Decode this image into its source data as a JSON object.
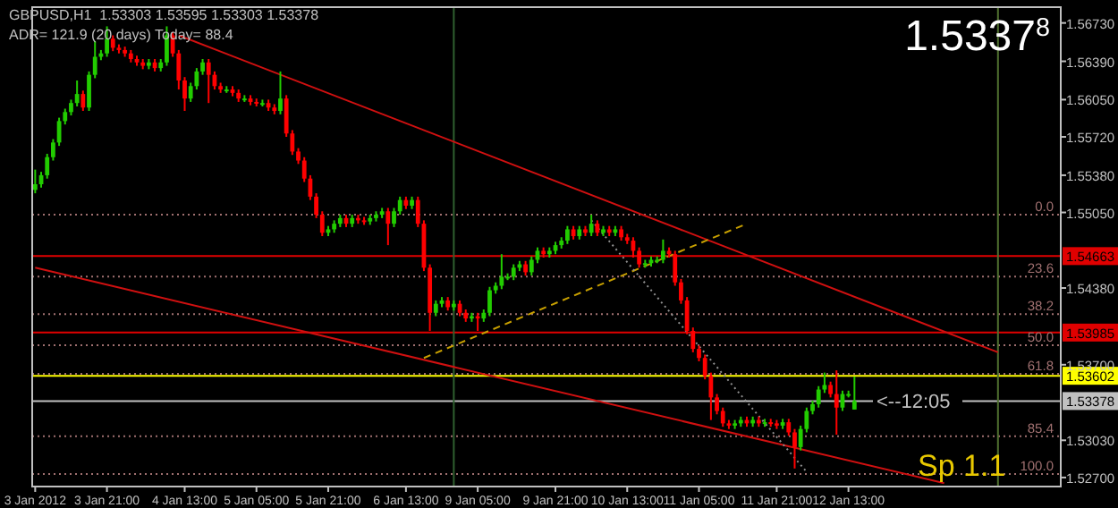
{
  "chart_data": {
    "type": "candlestick",
    "title": "GBPUSD,H1  1.53303 1.53595 1.53303 1.53378",
    "subtitle": "ADR= 121.9 (20 days) Today= 88.4",
    "annotations": [
      "1.5337$^{8}$",
      "<--12:05",
      "Sp 1.1",
      {
        "text": "0.0",
        "y": 1.5503
      },
      {
        "text": "23.6",
        "y": 1.54481
      },
      {
        "text": "38.2",
        "y": 1.54148
      },
      {
        "text": "50.0",
        "y": 1.53873
      },
      {
        "text": "61.8",
        "y": 1.5362
      },
      {
        "text": "85.4",
        "y": 1.53066
      },
      {
        "text": "100.0",
        "y": 1.52731
      }
    ],
    "categories": [
      "3 Jan 2012",
      null,
      null,
      null,
      null,
      null,
      null,
      null,
      null,
      null,
      null,
      null,
      "3 Jan 21:00",
      null,
      null,
      null,
      null,
      null,
      null,
      null,
      null,
      null,
      null,
      null,
      null,
      "4 Jan 13:00",
      null,
      null,
      null,
      null,
      null,
      null,
      null,
      null,
      null,
      null,
      null,
      "5 Jan 05:00",
      null,
      null,
      null,
      null,
      null,
      null,
      null,
      null,
      null,
      null,
      null,
      "5 Jan 21:00",
      null,
      null,
      null,
      null,
      null,
      null,
      null,
      null,
      null,
      null,
      null,
      null,
      "6 Jan 13:00",
      null,
      null,
      null,
      null,
      null,
      null,
      null,
      null,
      null,
      null,
      null,
      "9 Jan 05:00",
      null,
      null,
      null,
      null,
      null,
      null,
      null,
      null,
      null,
      null,
      null,
      null,
      "9 Jan 21:00",
      null,
      null,
      null,
      null,
      null,
      null,
      null,
      null,
      null,
      null,
      null,
      "10 Jan 13:00",
      null,
      null,
      null,
      null,
      null,
      null,
      null,
      null,
      null,
      null,
      null,
      "11 Jan 05:00",
      null,
      null,
      null,
      null,
      null,
      null,
      null,
      null,
      null,
      null,
      null,
      null,
      "11 Jan 21:00",
      null,
      null,
      null,
      null,
      null,
      null,
      null,
      null,
      null,
      null,
      null,
      "12 Jan 13:00",
      null,
      null,
      null,
      null,
      null,
      null,
      null,
      null,
      null,
      null,
      null,
      null,
      null,
      null,
      null,
      null,
      null,
      null,
      null,
      null,
      null,
      null,
      null,
      null,
      null,
      null,
      null,
      null,
      null,
      null,
      null,
      null,
      null,
      null,
      null
    ],
    "ylim": [
      1.5262,
      1.5687
    ],
    "yticks": [
      {
        "value": 1.527,
        "label": "1.52700"
      },
      {
        "value": 1.5303,
        "label": "1.53030"
      },
      {
        "value": 1.537,
        "label": "1.53700"
      },
      {
        "value": 1.5438,
        "label": "1.54380"
      },
      {
        "value": 1.5505,
        "label": "1.55050"
      },
      {
        "value": 1.5538,
        "label": "1.55380"
      },
      {
        "value": 1.5572,
        "label": "1.55720"
      },
      {
        "value": 1.5605,
        "label": "1.56050"
      },
      {
        "value": 1.5639,
        "label": "1.56390"
      },
      {
        "value": 1.5673,
        "label": "1.56730"
      }
    ],
    "ref_lines": [
      {
        "axis": "y",
        "value": 1.5503,
        "color": "#a07070",
        "line_style": "dotted"
      },
      {
        "axis": "y",
        "value": 1.54481,
        "color": "#a07070",
        "line_style": "dotted"
      },
      {
        "axis": "y",
        "value": 1.54148,
        "color": "#a07070",
        "line_style": "dotted"
      },
      {
        "axis": "y",
        "value": 1.53873,
        "color": "#a07070",
        "line_style": "dotted"
      },
      {
        "axis": "y",
        "value": 1.5362,
        "color": "#a07070",
        "line_style": "dotted"
      },
      {
        "axis": "y",
        "value": 1.53066,
        "color": "#a07070",
        "line_style": "dotted"
      },
      {
        "axis": "y",
        "value": 1.52731,
        "color": "#a07070",
        "line_style": "dotted"
      },
      {
        "axis": "y",
        "value": 1.54663,
        "label": "1.54663",
        "color": "#e00000",
        "line_style": "solid"
      },
      {
        "axis": "y",
        "value": 1.53985,
        "label": "1.53985",
        "color": "#e00000",
        "line_style": "solid"
      },
      {
        "axis": "y",
        "value": 1.53602,
        "label": "1.53602",
        "color": "#ffff00",
        "line_style": "solid"
      },
      {
        "axis": "y",
        "value": 1.53378,
        "label": "1.53378",
        "color": "#c0c0c0",
        "line_style": "solid"
      }
    ],
    "series": [
      {
        "colors": [
          "#22cc00",
          "#22cc00",
          "#22cc00",
          "#22cc00",
          "#22cc00",
          "#22cc00",
          "#22cc00",
          "#22cc00",
          "#ff0000",
          "#22cc00",
          "#22cc00",
          "#22cc00",
          "#22cc00",
          "#ff0000",
          "#ff0000",
          "#ff0000",
          "#ff0000",
          "#ff0000",
          "#ff0000",
          "#22cc00",
          "#ff0000",
          "#22cc00",
          "#22cc00",
          "#ff0000",
          "#ff0000",
          "#ff0000",
          "#22cc00",
          "#22cc00",
          "#22cc00",
          "#ff0000",
          "#ff0000",
          "#ff0000",
          "#22cc00",
          "#ff0000",
          "#ff0000",
          "#22cc00",
          "#ff0000",
          "#ff0000",
          "#22cc00",
          "#ff0000",
          "#ff0000",
          "#22cc00",
          "#ff0000",
          "#ff0000",
          "#ff0000",
          "#ff0000",
          "#ff0000",
          "#ff0000",
          "#ff0000",
          "#22cc00",
          "#22cc00",
          "#22cc00",
          "#ff0000",
          "#22cc00",
          "#ff0000",
          "#ff0000",
          "#22cc00",
          "#22cc00",
          "#22cc00",
          "#ff0000",
          "#22cc00",
          "#22cc00",
          "#ff0000",
          "#22cc00",
          "#ff0000",
          "#ff0000",
          "#ff0000",
          "#22cc00",
          "#22cc00",
          "#ff0000",
          "#22cc00",
          "#ff0000",
          "#ff0000",
          "#22cc00",
          "#ff0000",
          "#22cc00",
          "#22cc00",
          "#22cc00",
          "#22cc00",
          "#22cc00",
          "#22cc00",
          "#22cc00",
          "#ff0000",
          "#22cc00",
          "#22cc00",
          "#ff0000",
          "#22cc00",
          "#22cc00",
          "#22cc00",
          "#22cc00",
          "#ff0000",
          "#22cc00",
          "#ff0000",
          "#22cc00",
          "#ff0000",
          "#22cc00",
          "#ff0000",
          "#22cc00",
          "#ff0000",
          "#ff0000",
          "#ff0000",
          "#ff0000",
          "#22cc00",
          "#22cc00",
          "#22cc00",
          "#22cc00",
          "#ff0000",
          "#ff0000",
          "#ff0000",
          "#ff0000",
          "#ff0000",
          "#ff0000",
          "#ff0000",
          "#ff0000",
          "#ff0000",
          "#ff0000",
          "#ff0000",
          "#22cc00",
          "#22cc00",
          "#ff0000",
          "#22cc00",
          "#ff0000",
          "#22cc00",
          "#ff0000",
          "#ff0000",
          "#22cc00",
          "#ff0000",
          "#ff0000",
          "#22cc00",
          "#22cc00",
          "#22cc00",
          "#22cc00",
          "#22cc00",
          "#ff0000",
          "#ff0000",
          "#22cc00",
          "#22cc00",
          "#22cc00",
          null,
          null,
          null,
          null,
          null,
          null,
          null,
          null,
          null,
          null,
          null,
          null,
          null,
          null,
          null,
          null,
          null,
          null,
          null,
          null,
          null,
          null,
          null,
          null,
          null,
          null,
          null,
          null,
          null,
          null,
          null,
          null,
          null,
          null
        ],
        "ohlc": [
          [
            1.5525,
            1.5543,
            1.5522,
            1.553
          ],
          [
            1.553,
            1.5541,
            1.5527,
            1.5538
          ],
          [
            1.5538,
            1.5557,
            1.5535,
            1.5554
          ],
          [
            1.5554,
            1.557,
            1.5551,
            1.5567
          ],
          [
            1.5567,
            1.5589,
            1.5564,
            1.5586
          ],
          [
            1.5586,
            1.5597,
            1.5583,
            1.5594
          ],
          [
            1.5594,
            1.5605,
            1.5591,
            1.5602
          ],
          [
            1.5602,
            1.5622,
            1.5599,
            1.561
          ],
          [
            1.561,
            1.5613,
            1.5595,
            1.5598
          ],
          [
            1.5598,
            1.563,
            1.5595,
            1.5627
          ],
          [
            1.5627,
            1.5657,
            1.5624,
            1.5643
          ],
          [
            1.5643,
            1.5649,
            1.564,
            1.5646
          ],
          [
            1.5646,
            1.567,
            1.5643,
            1.5659
          ],
          [
            1.5659,
            1.5662,
            1.5648,
            1.5651
          ],
          [
            1.5651,
            1.5654,
            1.5646,
            1.5649
          ],
          [
            1.5649,
            1.5652,
            1.5643,
            1.5646
          ],
          [
            1.5646,
            1.5649,
            1.5638,
            1.5641
          ],
          [
            1.5641,
            1.5644,
            1.5635,
            1.5638
          ],
          [
            1.5638,
            1.5641,
            1.5632,
            1.5635
          ],
          [
            1.5635,
            1.5641,
            1.5632,
            1.5638
          ],
          [
            1.5638,
            1.5641,
            1.563,
            1.5633
          ],
          [
            1.5633,
            1.5641,
            1.563,
            1.5638
          ],
          [
            1.5638,
            1.567,
            1.5635,
            1.5662
          ],
          [
            1.5662,
            1.5665,
            1.5643,
            1.5646
          ],
          [
            1.5646,
            1.5649,
            1.5614,
            1.5622
          ],
          [
            1.5622,
            1.5625,
            1.5595,
            1.5606
          ],
          [
            1.5606,
            1.562,
            1.5603,
            1.5617
          ],
          [
            1.5617,
            1.5633,
            1.5614,
            1.563
          ],
          [
            1.563,
            1.5641,
            1.5627,
            1.5638
          ],
          [
            1.5638,
            1.5641,
            1.5602,
            1.5627
          ],
          [
            1.5627,
            1.563,
            1.5614,
            1.5617
          ],
          [
            1.5617,
            1.562,
            1.5611,
            1.5614
          ],
          [
            1.5614,
            1.5617,
            1.5611,
            1.5614
          ],
          [
            1.5614,
            1.5617,
            1.5608,
            1.5611
          ],
          [
            1.5611,
            1.5614,
            1.5603,
            1.5606
          ],
          [
            1.5606,
            1.5609,
            1.5603,
            1.5606
          ],
          [
            1.5606,
            1.5609,
            1.56,
            1.5603
          ],
          [
            1.5603,
            1.5606,
            1.5599,
            1.5602
          ],
          [
            1.5602,
            1.5605,
            1.5599,
            1.5602
          ],
          [
            1.5602,
            1.5605,
            1.5595,
            1.5598
          ],
          [
            1.5598,
            1.5601,
            1.5592,
            1.5595
          ],
          [
            1.5595,
            1.563,
            1.5592,
            1.5606
          ],
          [
            1.5606,
            1.5609,
            1.5572,
            1.5575
          ],
          [
            1.5575,
            1.5578,
            1.5556,
            1.5559
          ],
          [
            1.5559,
            1.5562,
            1.5548,
            1.5551
          ],
          [
            1.5551,
            1.5554,
            1.5532,
            1.5535
          ],
          [
            1.5535,
            1.5538,
            1.5516,
            1.5519
          ],
          [
            1.5519,
            1.5522,
            1.55,
            1.5503
          ],
          [
            1.5503,
            1.5506,
            1.5484,
            1.5487
          ],
          [
            1.5487,
            1.5493,
            1.5484,
            1.549
          ],
          [
            1.549,
            1.5498,
            1.5487,
            1.5495
          ],
          [
            1.5495,
            1.5503,
            1.5492,
            1.55
          ],
          [
            1.55,
            1.5503,
            1.5492,
            1.5495
          ],
          [
            1.5495,
            1.5503,
            1.5492,
            1.55
          ],
          [
            1.55,
            1.5503,
            1.5495,
            1.5498
          ],
          [
            1.5498,
            1.5501,
            1.5494,
            1.5497
          ],
          [
            1.5497,
            1.5503,
            1.5494,
            1.55
          ],
          [
            1.55,
            1.5506,
            1.5497,
            1.5503
          ],
          [
            1.5503,
            1.5509,
            1.55,
            1.5506
          ],
          [
            1.5506,
            1.5509,
            1.5476,
            1.5495
          ],
          [
            1.5495,
            1.5509,
            1.5492,
            1.5506
          ],
          [
            1.5506,
            1.5519,
            1.5503,
            1.5516
          ],
          [
            1.5516,
            1.5519,
            1.5508,
            1.5511
          ],
          [
            1.5511,
            1.5519,
            1.5508,
            1.5516
          ],
          [
            1.5516,
            1.5519,
            1.5492,
            1.5495
          ],
          [
            1.5495,
            1.5498,
            1.5453,
            1.5456
          ],
          [
            1.5456,
            1.5459,
            1.54,
            1.5416
          ],
          [
            1.5416,
            1.5427,
            1.5413,
            1.5424
          ],
          [
            1.5424,
            1.543,
            1.5421,
            1.5427
          ],
          [
            1.5427,
            1.543,
            1.5418,
            1.5421
          ],
          [
            1.5421,
            1.5427,
            1.5418,
            1.5424
          ],
          [
            1.5424,
            1.5427,
            1.5413,
            1.5416
          ],
          [
            1.5416,
            1.5419,
            1.5408,
            1.5411
          ],
          [
            1.5411,
            1.5416,
            1.5408,
            1.5413
          ],
          [
            1.5413,
            1.5416,
            1.54,
            1.5411
          ],
          [
            1.5411,
            1.5419,
            1.5408,
            1.5416
          ],
          [
            1.5416,
            1.5439,
            1.5413,
            1.5436
          ],
          [
            1.5436,
            1.5443,
            1.5433,
            1.544
          ],
          [
            1.544,
            1.5468,
            1.5437,
            1.5448
          ],
          [
            1.5448,
            1.5451,
            1.5445,
            1.5448
          ],
          [
            1.5448,
            1.5459,
            1.5445,
            1.5456
          ],
          [
            1.5456,
            1.5462,
            1.5453,
            1.5459
          ],
          [
            1.5459,
            1.5462,
            1.5449,
            1.5452
          ],
          [
            1.5452,
            1.5466,
            1.5449,
            1.5463
          ],
          [
            1.5463,
            1.5474,
            1.546,
            1.5471
          ],
          [
            1.5471,
            1.5474,
            1.5465,
            1.5468
          ],
          [
            1.5468,
            1.5474,
            1.5465,
            1.5471
          ],
          [
            1.5471,
            1.5479,
            1.5468,
            1.5476
          ],
          [
            1.5476,
            1.5483,
            1.5473,
            1.548
          ],
          [
            1.548,
            1.5493,
            1.5477,
            1.549
          ],
          [
            1.549,
            1.5493,
            1.5481,
            1.5484
          ],
          [
            1.5484,
            1.5493,
            1.5481,
            1.549
          ],
          [
            1.549,
            1.5493,
            1.5484,
            1.5487
          ],
          [
            1.5487,
            1.5503,
            1.5484,
            1.5495
          ],
          [
            1.5495,
            1.5498,
            1.5484,
            1.5487
          ],
          [
            1.5487,
            1.5493,
            1.5484,
            1.549
          ],
          [
            1.549,
            1.5493,
            1.5484,
            1.5487
          ],
          [
            1.5487,
            1.5493,
            1.5484,
            1.549
          ],
          [
            1.549,
            1.5493,
            1.548,
            1.5483
          ],
          [
            1.5483,
            1.5486,
            1.5477,
            1.548
          ],
          [
            1.548,
            1.5483,
            1.5465,
            1.5471
          ],
          [
            1.5471,
            1.5474,
            1.5456,
            1.5459
          ],
          [
            1.5459,
            1.5463,
            1.5456,
            1.546
          ],
          [
            1.546,
            1.5466,
            1.5457,
            1.5463
          ],
          [
            1.5463,
            1.5466,
            1.546,
            1.5463
          ],
          [
            1.5463,
            1.5481,
            1.546,
            1.5471
          ],
          [
            1.5471,
            1.5474,
            1.5465,
            1.5468
          ],
          [
            1.5468,
            1.5471,
            1.544,
            1.5443
          ],
          [
            1.5443,
            1.5446,
            1.5424,
            1.5427
          ],
          [
            1.5427,
            1.543,
            1.5397,
            1.54
          ],
          [
            1.54,
            1.5403,
            1.5381,
            1.5384
          ],
          [
            1.5384,
            1.5387,
            1.5373,
            1.5376
          ],
          [
            1.5376,
            1.5379,
            1.5357,
            1.536
          ],
          [
            1.536,
            1.5363,
            1.5321,
            1.5341
          ],
          [
            1.5341,
            1.5344,
            1.5326,
            1.5329
          ],
          [
            1.5329,
            1.5332,
            1.5315,
            1.5318
          ],
          [
            1.5318,
            1.5321,
            1.5313,
            1.5316
          ],
          [
            1.5316,
            1.5321,
            1.5313,
            1.5318
          ],
          [
            1.5318,
            1.5324,
            1.5315,
            1.5321
          ],
          [
            1.5321,
            1.5324,
            1.5315,
            1.5318
          ],
          [
            1.5318,
            1.5324,
            1.5315,
            1.5321
          ],
          [
            1.5321,
            1.5324,
            1.5315,
            1.5318
          ],
          [
            1.5318,
            1.5322,
            1.5315,
            1.5319
          ],
          [
            1.5319,
            1.5322,
            1.5315,
            1.5318
          ],
          [
            1.5318,
            1.5321,
            1.5313,
            1.5316
          ],
          [
            1.5316,
            1.5322,
            1.5313,
            1.5319
          ],
          [
            1.5319,
            1.5322,
            1.5307,
            1.531
          ],
          [
            1.531,
            1.5313,
            1.5278,
            1.5297
          ],
          [
            1.5297,
            1.5316,
            1.5294,
            1.5313
          ],
          [
            1.5313,
            1.5332,
            1.531,
            1.5329
          ],
          [
            1.5329,
            1.5338,
            1.5326,
            1.5335
          ],
          [
            1.5335,
            1.5351,
            1.5332,
            1.5348
          ],
          [
            1.5348,
            1.5363,
            1.5345,
            1.5352
          ],
          [
            1.5352,
            1.5355,
            1.5341,
            1.5344
          ],
          [
            1.5344,
            1.5365,
            1.5308,
            1.5332
          ],
          [
            1.5332,
            1.5347,
            1.5329,
            1.5344
          ],
          [
            1.5344,
            1.5347,
            1.5341,
            1.5344
          ],
          [
            1.53303,
            1.53595,
            1.53303,
            1.53378
          ],
          null,
          null,
          null,
          null,
          null,
          null,
          null,
          null,
          null,
          null,
          null,
          null,
          null,
          null,
          null,
          null,
          null,
          null,
          null,
          null,
          null,
          null,
          null,
          null,
          null,
          null,
          null,
          null,
          null,
          null,
          null,
          null,
          null,
          null
        ]
      },
      {
        "type": "line",
        "color": "#d01010",
        "line_style": "solid",
        "values": [
          null,
          null,
          null,
          null,
          null,
          null,
          null,
          null,
          null,
          null,
          null,
          null,
          null,
          null,
          null,
          null,
          null,
          null,
          null,
          null,
          null,
          null,
          null,
          null,
          1.5662,
          null,
          null,
          null,
          null,
          null,
          null,
          null,
          null,
          null,
          null,
          null,
          null,
          null,
          null,
          null,
          null,
          null,
          null,
          null,
          null,
          null,
          null,
          null,
          null,
          null,
          null,
          null,
          null,
          null,
          null,
          null,
          null,
          null,
          null,
          null,
          null,
          null,
          null,
          null,
          null,
          null,
          null,
          null,
          null,
          null,
          null,
          null,
          null,
          null,
          null,
          null,
          null,
          null,
          null,
          null,
          null,
          null,
          null,
          null,
          null,
          null,
          null,
          null,
          null,
          null,
          null,
          null,
          null,
          null,
          null,
          null,
          null,
          null,
          null,
          null,
          null,
          null,
          null,
          null,
          null,
          null,
          null,
          null,
          null,
          null,
          null,
          null,
          null,
          null,
          null,
          null,
          null,
          null,
          null,
          null,
          null,
          null,
          null,
          null,
          null,
          null,
          null,
          null,
          null,
          null,
          null,
          null,
          null,
          null,
          null,
          null,
          null,
          null,
          null,
          null,
          null,
          null,
          null,
          null,
          null,
          null,
          null,
          null,
          null,
          null,
          null,
          null,
          null,
          null,
          null,
          null,
          null,
          null,
          null,
          null,
          null,
          1.5381,
          null,
          null,
          null,
          null,
          null,
          null,
          null,
          null,
          null,
          null
        ]
      },
      {
        "type": "line",
        "color": "#d01010",
        "line_style": "solid",
        "values": [
          1.5456,
          null,
          null,
          null,
          null,
          null,
          null,
          null,
          null,
          null,
          null,
          null,
          null,
          null,
          null,
          null,
          null,
          null,
          null,
          null,
          null,
          null,
          null,
          null,
          null,
          null,
          null,
          null,
          null,
          null,
          null,
          null,
          null,
          null,
          null,
          null,
          null,
          null,
          null,
          null,
          null,
          null,
          null,
          null,
          null,
          null,
          null,
          null,
          null,
          null,
          null,
          null,
          null,
          null,
          null,
          null,
          null,
          null,
          null,
          null,
          null,
          null,
          null,
          null,
          null,
          null,
          null,
          null,
          null,
          null,
          null,
          null,
          null,
          null,
          null,
          null,
          null,
          null,
          null,
          null,
          null,
          null,
          null,
          null,
          null,
          null,
          null,
          null,
          null,
          null,
          null,
          null,
          null,
          null,
          null,
          null,
          null,
          null,
          null,
          null,
          null,
          null,
          null,
          null,
          null,
          null,
          null,
          null,
          null,
          null,
          null,
          null,
          null,
          null,
          null,
          null,
          null,
          null,
          null,
          null,
          null,
          null,
          null,
          null,
          null,
          null,
          null,
          null,
          null,
          null,
          null,
          null,
          null,
          null,
          null,
          null,
          null,
          null,
          null,
          null,
          null,
          null,
          null,
          null,
          null,
          null,
          null,
          null,
          null,
          null,
          null,
          null,
          1.5265,
          null,
          null,
          null,
          null,
          null,
          null,
          null,
          null,
          null,
          null,
          null,
          null,
          null,
          null,
          null,
          null,
          null,
          null,
          null
        ]
      },
      {
        "type": "line",
        "color": "#c8a000",
        "line_style": "dashed",
        "values": [
          null,
          null,
          null,
          null,
          null,
          null,
          null,
          null,
          null,
          null,
          null,
          null,
          null,
          null,
          null,
          null,
          null,
          null,
          null,
          null,
          null,
          null,
          null,
          null,
          null,
          null,
          null,
          null,
          null,
          null,
          null,
          null,
          null,
          null,
          null,
          null,
          null,
          null,
          null,
          null,
          null,
          null,
          null,
          null,
          null,
          null,
          null,
          null,
          null,
          null,
          null,
          null,
          null,
          null,
          null,
          null,
          null,
          null,
          null,
          null,
          null,
          null,
          null,
          null,
          null,
          1.5376,
          null,
          null,
          null,
          null,
          null,
          null,
          null,
          null,
          null,
          null,
          null,
          null,
          null,
          null,
          null,
          null,
          null,
          null,
          null,
          null,
          null,
          null,
          null,
          null,
          null,
          null,
          null,
          null,
          null,
          null,
          null,
          null,
          null,
          null,
          null,
          null,
          null,
          null,
          null,
          null,
          null,
          null,
          null,
          null,
          null,
          null,
          null,
          null,
          null,
          null,
          null,
          null,
          null,
          1.5495,
          null,
          null,
          null,
          null,
          null,
          null,
          null,
          null,
          null,
          null,
          null,
          null,
          null,
          null,
          null,
          null,
          null,
          null,
          null,
          null,
          null,
          null,
          null,
          null,
          null,
          null,
          null,
          null,
          null,
          null,
          null,
          null,
          null,
          null,
          null,
          null,
          null,
          null,
          null,
          null,
          null,
          null,
          null,
          null,
          null,
          null,
          null,
          null,
          null,
          null,
          null,
          null
        ]
      },
      {
        "type": "line",
        "color": "#909090",
        "line_style": "dotted",
        "values": [
          null,
          null,
          null,
          null,
          null,
          null,
          null,
          null,
          null,
          null,
          null,
          null,
          null,
          null,
          null,
          null,
          null,
          null,
          null,
          null,
          null,
          null,
          null,
          null,
          null,
          null,
          null,
          null,
          null,
          null,
          null,
          null,
          null,
          null,
          null,
          null,
          null,
          null,
          null,
          null,
          null,
          null,
          null,
          null,
          null,
          null,
          null,
          null,
          null,
          null,
          null,
          null,
          null,
          null,
          null,
          null,
          null,
          null,
          null,
          null,
          null,
          null,
          null,
          null,
          null,
          null,
          null,
          null,
          null,
          null,
          null,
          null,
          null,
          null,
          null,
          null,
          null,
          null,
          null,
          null,
          null,
          null,
          null,
          null,
          null,
          null,
          null,
          null,
          null,
          null,
          null,
          null,
          null,
          1.5498,
          null,
          null,
          null,
          null,
          null,
          null,
          null,
          null,
          null,
          null,
          null,
          null,
          null,
          null,
          null,
          null,
          null,
          null,
          null,
          null,
          null,
          null,
          null,
          null,
          null,
          null,
          null,
          null,
          null,
          null,
          null,
          null,
          null,
          null,
          null,
          1.5275,
          null,
          null,
          null,
          null,
          null,
          null,
          null,
          null,
          null,
          null,
          null,
          null,
          null,
          null,
          null,
          null,
          null,
          null,
          null,
          null,
          null,
          null,
          null,
          null,
          null,
          null,
          null,
          null,
          null,
          null,
          null,
          null,
          null,
          null,
          null,
          null,
          null,
          null,
          null,
          null,
          null,
          null
        ]
      }
    ]
  }
}
